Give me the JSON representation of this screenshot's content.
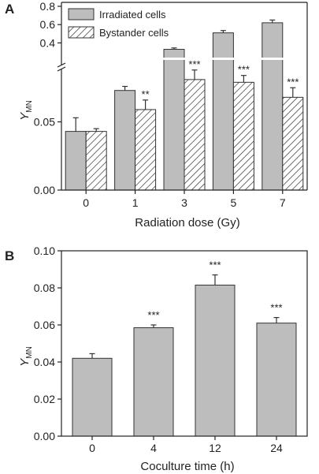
{
  "chart_data": [
    {
      "panel": "A",
      "type": "bar",
      "xlabel": "Radiation dose (Gy)",
      "ylabel": "Y",
      "ylabel_sub": "MN",
      "categories": [
        "0",
        "1",
        "3",
        "5",
        "7"
      ],
      "y_axis_break": true,
      "lower_segment": {
        "ylim": [
          0,
          0.1
        ],
        "ticks": [
          "0.00",
          "0.05"
        ]
      },
      "upper_segment": {
        "ylim": [
          0.3,
          0.8
        ],
        "ticks": [
          "0.4",
          "0.6",
          "0.8"
        ]
      },
      "grid": false,
      "legend_position": "top-left",
      "series": [
        {
          "name": "Irradiated cells",
          "fill": "solid-gray",
          "values": [
            0.043,
            0.073,
            0.33,
            0.51,
            0.62
          ],
          "errors": [
            0.01,
            0.003,
            0.015,
            0.025,
            0.03
          ],
          "significance": [
            "",
            "",
            "",
            "",
            ""
          ]
        },
        {
          "name": "Bystander cells",
          "fill": "hatched",
          "values": [
            0.043,
            0.059,
            0.081,
            0.079,
            0.068
          ],
          "errors": [
            0.002,
            0.007,
            0.007,
            0.005,
            0.007
          ],
          "significance": [
            "",
            "**",
            "***",
            "***",
            "***"
          ]
        }
      ]
    },
    {
      "panel": "B",
      "type": "bar",
      "xlabel": "Coculture time (h)",
      "ylabel": "Y",
      "ylabel_sub": "MN",
      "categories": [
        "0",
        "4",
        "12",
        "24"
      ],
      "ylim": [
        0,
        0.1
      ],
      "yticks": [
        "0.00",
        "0.02",
        "0.04",
        "0.06",
        "0.08",
        "0.10"
      ],
      "grid": false,
      "series": [
        {
          "fill": "solid-gray",
          "values": [
            0.042,
            0.0585,
            0.0815,
            0.061
          ],
          "errors": [
            0.0025,
            0.0015,
            0.0055,
            0.003
          ],
          "significance": [
            "",
            "***",
            "***",
            "***"
          ]
        }
      ]
    }
  ],
  "colors": {
    "bar_fill": "#bdbdbd",
    "hatch": "#333333",
    "axis": "#222222"
  }
}
